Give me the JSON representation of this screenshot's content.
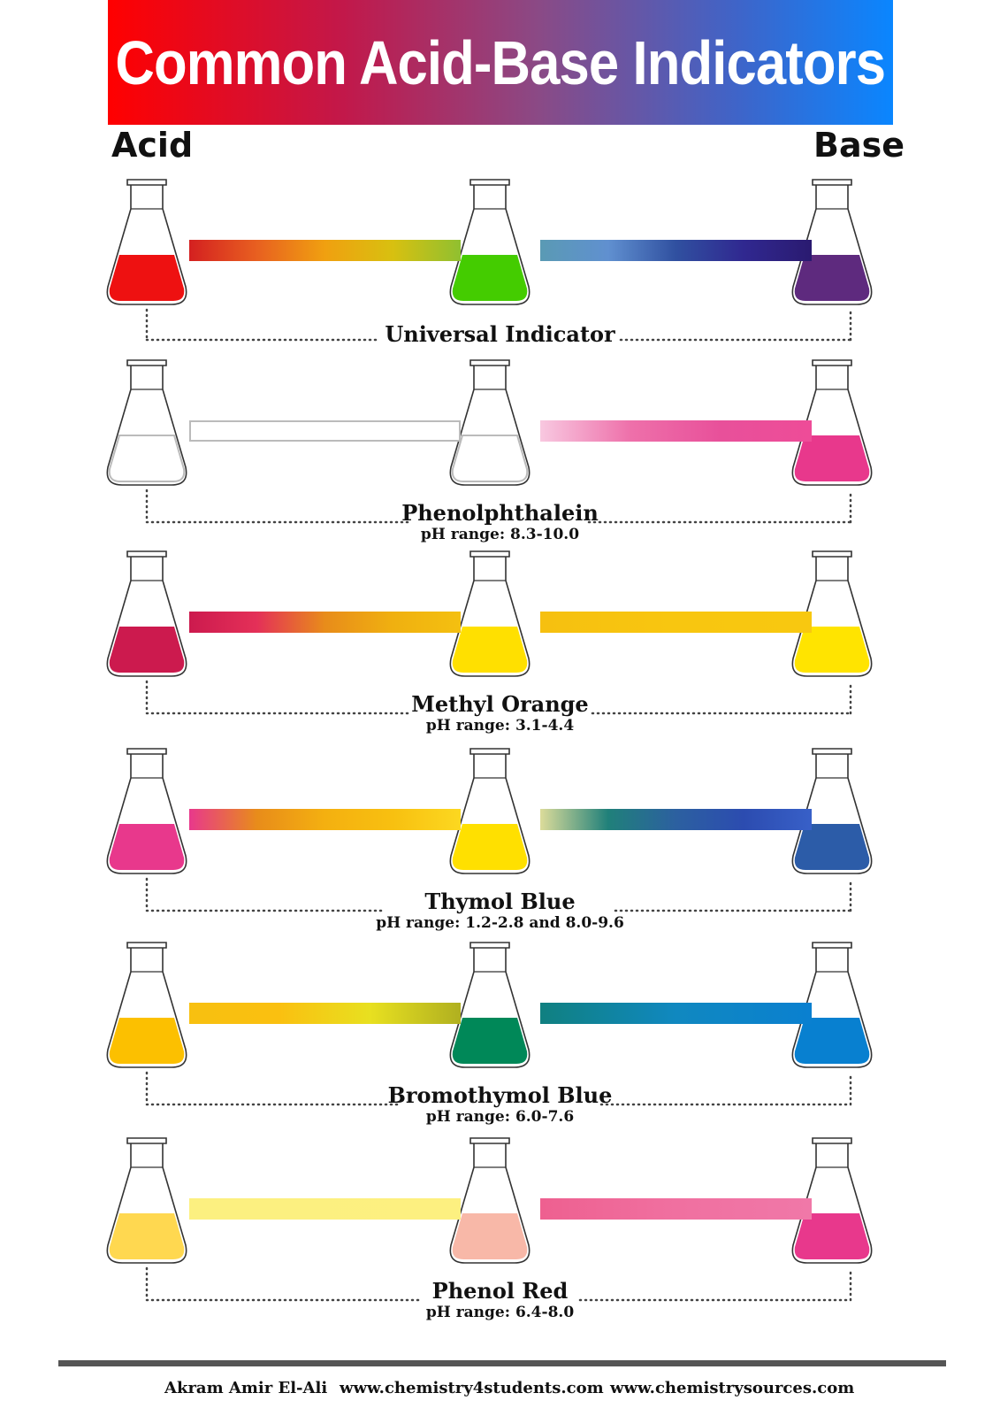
{
  "title": "Common Acid-Base Indicators",
  "side_labels": {
    "acid": "Acid",
    "base": "Base"
  },
  "indicators": [
    {
      "name": "Universal Indicator",
      "range": "",
      "acid_color": "#ee1111",
      "mid_color": "#44cc00",
      "base_color": "#5e2a7e",
      "empty_acid": false,
      "empty_mid": false,
      "left_gradient": [
        "#d42020",
        "#e86020",
        "#f0a010",
        "#d8c010",
        "#90c030"
      ],
      "right_gradient": [
        "#5a9ab4",
        "#6090d0",
        "#3050a0",
        "#302890",
        "#2a1a70"
      ]
    },
    {
      "name": "Phenolphthalein",
      "range": "pH range: 8.3-10.0",
      "acid_color": "#ffffff",
      "mid_color": "#ffffff",
      "base_color": "#e8388c",
      "empty_acid": true,
      "empty_mid": true,
      "left_gradient": [
        "#ffffff",
        "#ffffff"
      ],
      "right_gradient": [
        "#f8c8e0",
        "#ee70aa",
        "#e8509a",
        "#ee4c98"
      ]
    },
    {
      "name": "Methyl Orange",
      "range": "pH range: 3.1-4.4",
      "acid_color": "#cc1a4e",
      "mid_color": "#ffe000",
      "base_color": "#ffe400",
      "empty_acid": false,
      "empty_mid": false,
      "left_gradient": [
        "#cc1a4e",
        "#e43058",
        "#e88c1a",
        "#f0b010",
        "#f4c010"
      ],
      "right_gradient": [
        "#f6c010",
        "#f8c610",
        "#f8c810"
      ]
    },
    {
      "name": "Thymol Blue",
      "range": "pH range: 1.2-2.8 and 8.0-9.6",
      "acid_color": "#e8388c",
      "mid_color": "#ffe000",
      "base_color": "#2c5ca8",
      "empty_acid": false,
      "empty_mid": false,
      "left_gradient": [
        "#e8388c",
        "#e88c1a",
        "#f4b010",
        "#f8c010",
        "#fcd820"
      ],
      "right_gradient": [
        "#dcdc9a",
        "#20807a",
        "#2c60a0",
        "#2c4cb0",
        "#3860c8"
      ]
    },
    {
      "name": "Bromothymol Blue",
      "range": "pH range: 6.0-7.6",
      "acid_color": "#fcc000",
      "mid_color": "#008858",
      "base_color": "#0880d0",
      "empty_acid": false,
      "empty_mid": false,
      "left_gradient": [
        "#f8c010",
        "#fac010",
        "#e8e020",
        "#b0b020"
      ],
      "right_gradient": [
        "#108080",
        "#1088c0",
        "#0a80d0"
      ]
    },
    {
      "name": "Phenol Red",
      "range": "pH range: 6.4-8.0",
      "acid_color": "#ffd850",
      "mid_color": "#f8b8a8",
      "base_color": "#e8388c",
      "empty_acid": false,
      "empty_mid": false,
      "left_gradient": [
        "#fcf080",
        "#fdf080"
      ],
      "right_gradient": [
        "#ee6090",
        "#f070a0",
        "#f078a8"
      ]
    }
  ],
  "footer": {
    "credit": "Akram Amir El-Ali",
    "site1": "www.chemistry4students.com",
    "site2": "www.chemistrysources.com"
  }
}
